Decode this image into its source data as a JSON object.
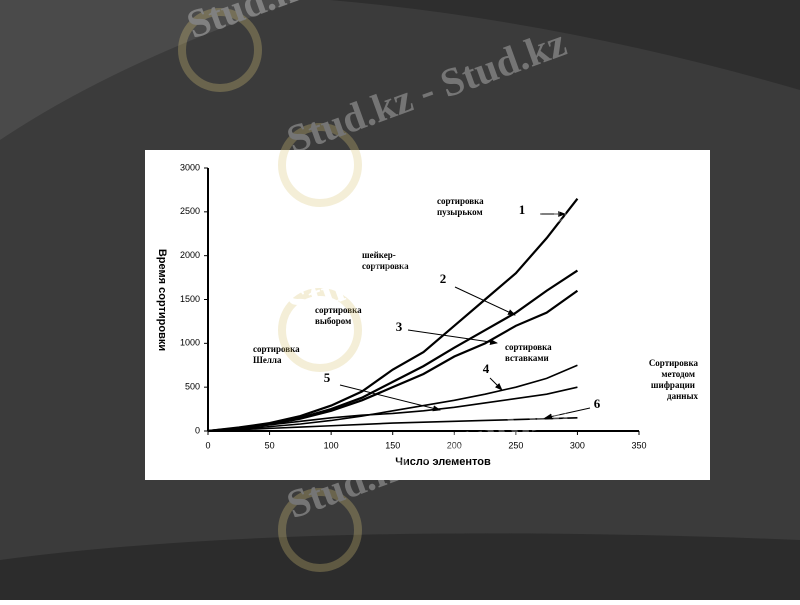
{
  "chart_data": {
    "type": "line",
    "x_label": "Число элементов",
    "y_label": "Время сортировки",
    "x": [
      0,
      25,
      50,
      75,
      100,
      125,
      150,
      175,
      200,
      225,
      250,
      275,
      300
    ],
    "series": [
      {
        "name": "1",
        "color": "#000000",
        "values": [
          0,
          40,
          90,
          170,
          290,
          450,
          700,
          900,
          1200,
          1500,
          1800,
          2200,
          2650
        ]
      },
      {
        "name": "2",
        "color": "#000000",
        "values": [
          0,
          35,
          80,
          150,
          250,
          380,
          560,
          740,
          950,
          1150,
          1350,
          1600,
          1830
        ]
      },
      {
        "name": "3",
        "color": "#000000",
        "values": [
          0,
          30,
          75,
          140,
          230,
          350,
          500,
          650,
          850,
          1000,
          1200,
          1350,
          1600
        ]
      },
      {
        "name": "4",
        "color": "#000000",
        "values": [
          0,
          20,
          50,
          80,
          120,
          170,
          230,
          290,
          350,
          420,
          500,
          600,
          750
        ]
      },
      {
        "name": "5",
        "color": "#000000",
        "values": [
          0,
          30,
          70,
          110,
          150,
          180,
          200,
          230,
          270,
          320,
          370,
          420,
          500
        ]
      },
      {
        "name": "6",
        "color": "#000000",
        "values": [
          0,
          15,
          30,
          45,
          60,
          75,
          90,
          100,
          110,
          120,
          130,
          140,
          150
        ]
      }
    ],
    "annotations": [
      [
        "сортировка",
        "пузырьком"
      ],
      [
        "шейкер-",
        "сортировка"
      ],
      [
        "сортировка",
        "выбором"
      ],
      [
        "сортировка",
        "вставками"
      ],
      [
        "сортировка",
        "Шелла"
      ],
      [
        "Сортировка",
        "методом",
        "шифрации",
        "данных"
      ]
    ],
    "xlim": [
      0,
      350
    ],
    "xticks": [
      0,
      50,
      100,
      150,
      200,
      250,
      300,
      350
    ],
    "ylim": [
      0,
      3000
    ],
    "yticks": [
      0,
      500,
      1000,
      1500,
      2000,
      2500,
      3000
    ]
  },
  "watermark": "Stud.kz - Stud.kz"
}
